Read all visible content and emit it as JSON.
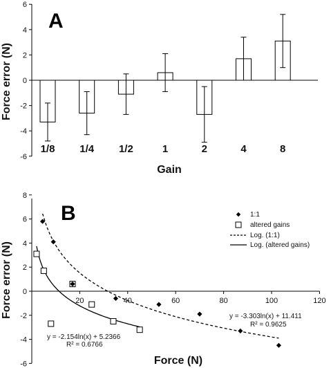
{
  "chart_data": [
    {
      "type": "bar",
      "panel_label": "A",
      "title": "",
      "categories": [
        "1/8",
        "1/4",
        "1/2",
        "1",
        "2",
        "4",
        "8"
      ],
      "values": [
        -3.3,
        -2.6,
        -1.1,
        0.6,
        -2.7,
        1.7,
        3.1
      ],
      "error": [
        1.5,
        1.7,
        1.6,
        1.5,
        2.2,
        1.7,
        2.1
      ],
      "xlabel": "Gain",
      "ylabel": "Force error (N)",
      "ylim": [
        -6,
        6
      ],
      "yticks": [
        -6,
        -4,
        -2,
        0,
        2,
        4,
        6
      ],
      "grid": false
    },
    {
      "type": "scatter",
      "panel_label": "B",
      "title": "",
      "xlabel": "Force (N)",
      "ylabel": "Force error (N)",
      "xlim": [
        0,
        120
      ],
      "ylim": [
        -6,
        8
      ],
      "xticks": [
        20,
        40,
        60,
        80,
        100,
        120
      ],
      "yticks": [
        -6,
        -4,
        -2,
        0,
        2,
        4,
        6,
        8
      ],
      "grid": false,
      "legend_position": "top-right",
      "series": [
        {
          "name": "1:1",
          "marker": "diamond",
          "points": [
            [
              4.5,
              5.8
            ],
            [
              9,
              4.1
            ],
            [
              17,
              0.6
            ],
            [
              35,
              -0.6
            ],
            [
              53,
              -1.1
            ],
            [
              70,
              -1.9
            ],
            [
              87,
              -3.3
            ],
            [
              103,
              -4.5
            ]
          ]
        },
        {
          "name": "altered gains",
          "marker": "open-square",
          "points": [
            [
              2,
              3.1
            ],
            [
              5,
              1.7
            ],
            [
              17,
              0.6
            ],
            [
              8,
              -2.7
            ],
            [
              25,
              -1.1
            ],
            [
              34,
              -2.5
            ],
            [
              45,
              -3.2
            ]
          ]
        }
      ],
      "trendlines": [
        {
          "name": "Log. (1:1)",
          "style": "dashed",
          "fit": "log",
          "a": -3.303,
          "b": 11.411,
          "x_range": [
            4.5,
            103
          ],
          "equation": "y = -3.303ln(x) + 11.411",
          "r2": "R² = 0.9625"
        },
        {
          "name": "Log. (altered gains)",
          "style": "solid",
          "fit": "log",
          "a": -2.154,
          "b": 5.2366,
          "x_range": [
            2,
            45
          ],
          "equation": "y = -2.154ln(x) + 5.2366",
          "r2": "R² = 0.6766"
        }
      ]
    }
  ]
}
